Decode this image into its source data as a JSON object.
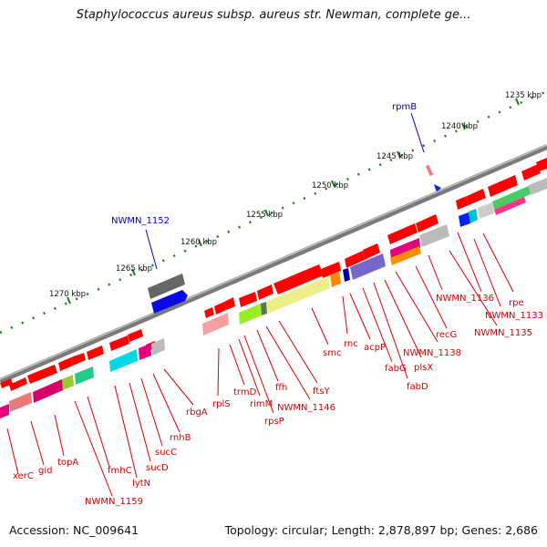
{
  "title": "Staphylococcus aureus subsp. aureus str. Newman, complete ge...",
  "footer": {
    "accession": "Accession: NC_009641",
    "summary": "Topology: circular; Length: 2,878,897 bp; Genes: 2,686"
  },
  "ruler_labels": [
    "1235 kbp",
    "1240 kbp",
    "1245 kbp",
    "1250 kbp",
    "1255 kbp",
    "1260 kbp",
    "1265 kbp",
    "1270 kbp"
  ],
  "callouts": [
    "rpmB",
    "NWMN_1152"
  ],
  "gene_labels": [
    "NWMN_1136",
    "rpe",
    "NWMN_1133",
    "NWMN_1135",
    "recG",
    "NWMN_1138",
    "plsX",
    "fabD",
    "fabG",
    "acpP",
    "rnc",
    "smc",
    "ftsY",
    "NWMN_1146",
    "ffh",
    "rpsP",
    "rimM",
    "trmD",
    "rplS",
    "rbgA",
    "rnhB",
    "sucC",
    "sucD",
    "lytN",
    "fmhC",
    "NWMN_1159",
    "topA",
    "gid",
    "xerC"
  ],
  "colors": {
    "backbone": "#8a8a8a",
    "forward_gene": "#ff0000",
    "ruler_tick": "#1a7a1a",
    "label": "#d40000",
    "callout": "#0000cc"
  }
}
